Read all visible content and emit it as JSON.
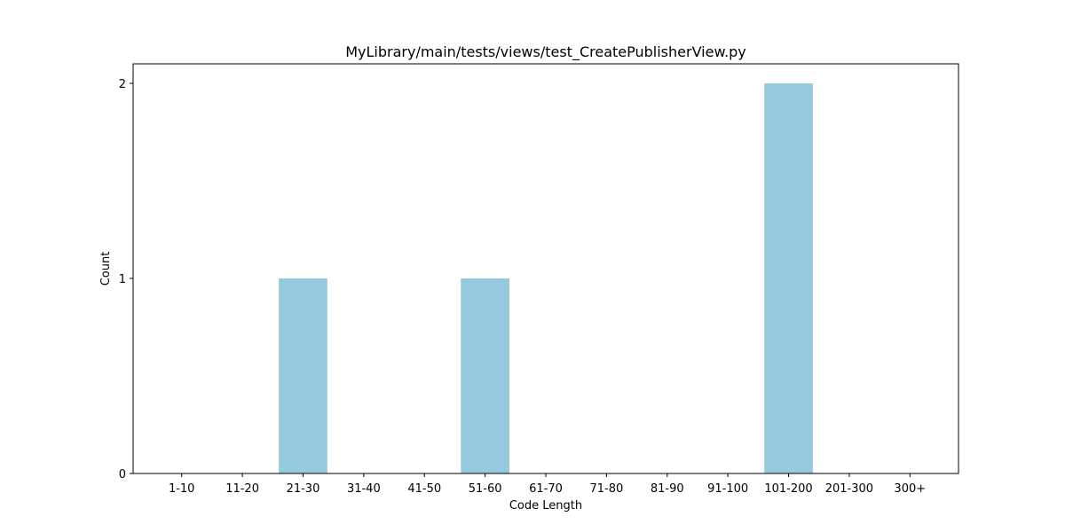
{
  "chart_data": {
    "type": "bar",
    "title": "MyLibrary/main/tests/views/test_CreatePublisherView.py",
    "xlabel": "Code Length",
    "ylabel": "Count",
    "categories": [
      "1-10",
      "11-20",
      "21-30",
      "31-40",
      "41-50",
      "51-60",
      "61-70",
      "71-80",
      "81-90",
      "91-100",
      "101-200",
      "201-300",
      "300+"
    ],
    "values": [
      0,
      0,
      1,
      0,
      0,
      1,
      0,
      0,
      0,
      0,
      2,
      0,
      0
    ],
    "yticks": [
      0,
      1,
      2
    ],
    "ylim": [
      0,
      2.1
    ],
    "grid": false,
    "colors": {
      "bar": "#96c9dd",
      "axis": "#000000"
    }
  }
}
